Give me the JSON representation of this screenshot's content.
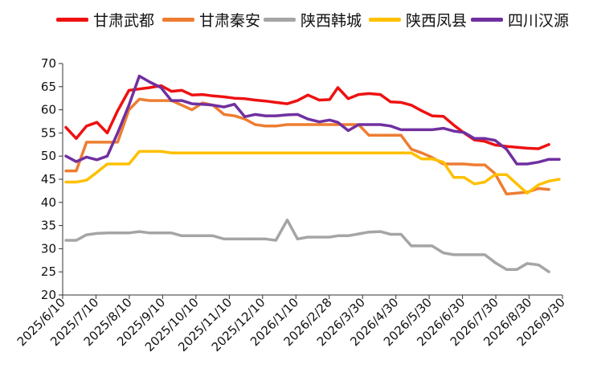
{
  "chart_data": {
    "type": "line",
    "title": "",
    "xlabel": "",
    "ylabel": "",
    "ylim": [
      20,
      70
    ],
    "yticks": [
      20,
      25,
      30,
      35,
      40,
      45,
      50,
      55,
      60,
      65,
      70
    ],
    "grid": false,
    "legend_position": "top",
    "x_tick_labels": [
      "2025/6/10",
      "2025/7/10",
      "2025/8/10",
      "2025/9/10",
      "2025/10/10",
      "2025/11/10",
      "2025/12/10",
      "2026/1/10",
      "2026/2/28",
      "2026/3/30",
      "2026/4/30",
      "2026/5/30",
      "2026/6/30",
      "2026/7/30",
      "2026/8/30",
      "2026/9/30"
    ],
    "x": [
      "2025-06-10",
      "2025-06-20",
      "2025-06-30",
      "2025-07-10",
      "2025-07-20",
      "2025-07-30",
      "2025-08-10",
      "2025-08-20",
      "2025-08-30",
      "2025-09-10",
      "2025-09-20",
      "2025-09-30",
      "2025-10-10",
      "2025-10-20",
      "2025-10-30",
      "2025-11-10",
      "2025-11-20",
      "2025-11-30",
      "2025-12-10",
      "2025-12-20",
      "2025-12-30",
      "2026-01-10",
      "2026-01-20",
      "2026-01-30",
      "2026-02-10",
      "2026-02-20",
      "2026-02-28",
      "2026-03-10",
      "2026-03-20",
      "2026-03-30",
      "2026-04-10",
      "2026-04-20",
      "2026-04-30",
      "2026-05-10",
      "2026-05-20",
      "2026-05-30",
      "2026-06-10",
      "2026-06-20",
      "2026-06-30",
      "2026-07-10",
      "2026-07-20",
      "2026-07-30",
      "2026-08-10",
      "2026-08-20",
      "2026-08-30",
      "2026-09-10",
      "2026-09-20",
      "2026-09-30"
    ],
    "series": [
      {
        "name": "甘肃武都",
        "color": "#ee1111",
        "values": [
          56.2,
          53.8,
          56.5,
          57.3,
          55.0,
          59.8,
          64.2,
          64.5,
          64.8,
          65.2,
          64.0,
          64.2,
          63.2,
          63.3,
          63.0,
          62.8,
          62.5,
          62.4,
          62.1,
          61.9,
          61.6,
          61.3,
          62.0,
          63.2,
          62.1,
          62.2,
          64.8,
          62.4,
          63.3,
          63.5,
          63.3,
          61.7,
          61.6,
          61.0,
          59.8,
          58.7,
          58.6,
          56.7,
          55.0,
          53.5,
          53.2,
          52.4,
          52.1,
          51.9,
          51.7,
          51.6,
          52.5,
          null
        ]
      },
      {
        "name": "甘肃秦安",
        "color": "#ee7d31",
        "values": [
          46.8,
          46.8,
          53.0,
          53.0,
          53.0,
          53.0,
          60.0,
          62.3,
          62.0,
          62.0,
          62.0,
          61.0,
          60.0,
          61.5,
          61.0,
          59.0,
          58.7,
          58.0,
          56.8,
          56.5,
          56.5,
          56.8,
          56.8,
          56.8,
          56.8,
          56.8,
          56.8,
          56.8,
          56.8,
          54.5,
          54.5,
          54.5,
          54.5,
          51.5,
          50.7,
          49.7,
          48.3,
          48.3,
          48.3,
          48.1,
          48.1,
          46.2,
          41.8,
          42.0,
          42.2,
          43.0,
          42.8,
          null
        ]
      },
      {
        "name": "陕西韩城",
        "color": "#a5a5a5",
        "values": [
          31.8,
          31.8,
          33.0,
          33.3,
          33.4,
          33.4,
          33.4,
          33.7,
          33.4,
          33.4,
          33.4,
          32.8,
          32.8,
          32.8,
          32.8,
          32.1,
          32.1,
          32.1,
          32.1,
          32.1,
          31.8,
          36.2,
          32.1,
          32.5,
          32.5,
          32.5,
          32.8,
          32.8,
          33.2,
          33.6,
          33.7,
          33.1,
          33.1,
          30.6,
          30.6,
          30.6,
          29.1,
          28.7,
          28.7,
          28.7,
          28.7,
          27.0,
          25.5,
          25.5,
          26.8,
          26.5,
          25.0,
          null
        ]
      },
      {
        "name": "陕西凤县",
        "color": "#ffc000",
        "values": [
          44.4,
          44.4,
          44.8,
          46.5,
          48.3,
          48.3,
          48.3,
          51.0,
          51.0,
          51.0,
          50.7,
          50.7,
          50.7,
          50.7,
          50.7,
          50.7,
          50.7,
          50.7,
          50.7,
          50.7,
          50.7,
          50.7,
          50.7,
          50.7,
          50.7,
          50.7,
          50.7,
          50.7,
          50.7,
          50.7,
          50.7,
          50.7,
          50.7,
          50.7,
          49.4,
          49.4,
          48.7,
          45.4,
          45.4,
          44.0,
          44.4,
          46.0,
          46.0,
          44.0,
          42.0,
          43.8,
          44.6,
          45.0
        ]
      },
      {
        "name": "四川汉源",
        "color": "#7030a0",
        "values": [
          50.0,
          48.8,
          49.8,
          49.2,
          50.0,
          55.0,
          61.0,
          67.3,
          66.0,
          64.8,
          62.0,
          62.0,
          61.3,
          61.2,
          61.0,
          60.6,
          61.2,
          58.5,
          59.0,
          58.7,
          58.7,
          58.9,
          59.0,
          58.0,
          57.4,
          57.8,
          57.3,
          55.5,
          56.8,
          56.8,
          56.8,
          56.5,
          55.7,
          55.7,
          55.7,
          55.7,
          56.0,
          55.4,
          55.1,
          53.8,
          53.8,
          53.4,
          51.5,
          48.3,
          48.3,
          48.7,
          49.3,
          49.3
        ]
      }
    ]
  }
}
